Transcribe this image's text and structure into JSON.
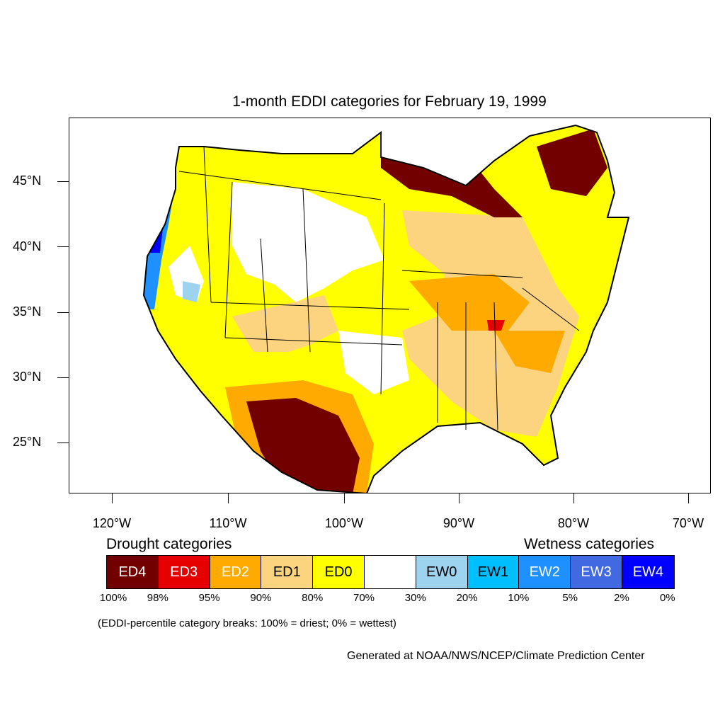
{
  "title": "1-month EDDI categories for February 19, 1999",
  "y_axis_labels": [
    "45°N",
    "40°N",
    "35°N",
    "30°N",
    "25°N"
  ],
  "x_axis_labels": [
    "120°W",
    "110°W",
    "100°W",
    "90°W",
    "80°W",
    "70°W"
  ],
  "legend": {
    "drought_heading": "Drought categories",
    "wetness_heading": "Wetness categories",
    "categories": [
      {
        "label": "ED4",
        "color": "#730000",
        "text_color": "#ffffff"
      },
      {
        "label": "ED3",
        "color": "#e60000",
        "text_color": "#ffffff"
      },
      {
        "label": "ED2",
        "color": "#ffaa00",
        "text_color": "#ffffff"
      },
      {
        "label": "ED1",
        "color": "#fcd37f",
        "text_color": "#000000"
      },
      {
        "label": "ED0",
        "color": "#ffff00",
        "text_color": "#000000"
      },
      {
        "label": "",
        "color": "#ffffff",
        "text_color": "#000000"
      },
      {
        "label": "EW0",
        "color": "#9ed3f0",
        "text_color": "#000000"
      },
      {
        "label": "EW1",
        "color": "#00bfff",
        "text_color": "#000000"
      },
      {
        "label": "EW2",
        "color": "#1e90ff",
        "text_color": "#ffffff"
      },
      {
        "label": "EW3",
        "color": "#4169e1",
        "text_color": "#ffffff"
      },
      {
        "label": "EW4",
        "color": "#0000ff",
        "text_color": "#ffffff"
      }
    ],
    "percentiles": [
      "100%",
      "98%",
      "95%",
      "90%",
      "80%",
      "70%",
      "30%",
      "20%",
      "10%",
      "5%",
      "2%",
      "0%"
    ]
  },
  "note": "(EDDI-percentile category breaks: 100% = driest; 0% = wettest)",
  "credit": "Generated at NOAA/NWS/NCEP/Climate Prediction Center"
}
